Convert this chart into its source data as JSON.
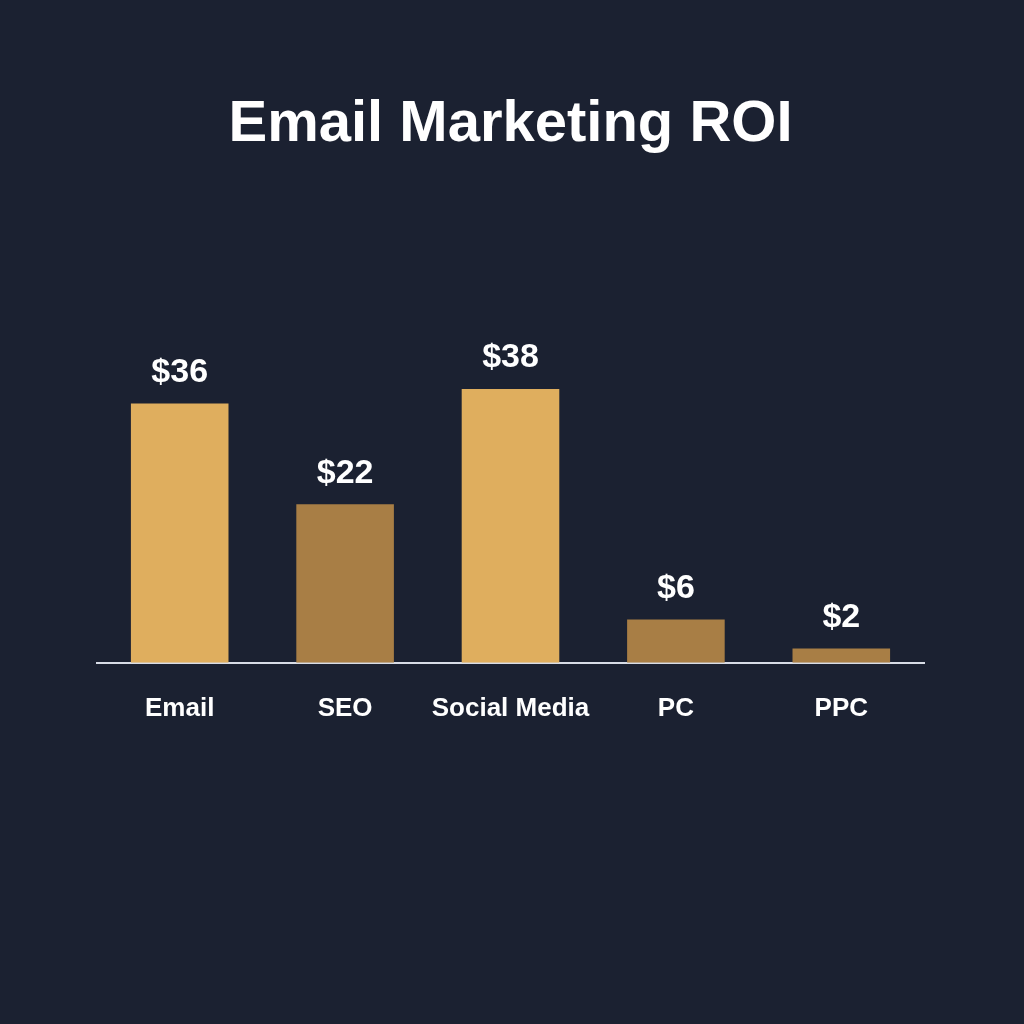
{
  "chart_data": {
    "type": "bar",
    "title": "Email Marketing ROI",
    "categories": [
      "Email",
      "SEO",
      "Social Media",
      "PC",
      "PPC"
    ],
    "values": [
      36,
      22,
      38,
      6,
      2
    ],
    "colors": [
      "#dfae5e",
      "#a87e45",
      "#dfae5e",
      "#a87e45",
      "#a87e45"
    ],
    "value_labels": [
      "$36",
      "$22",
      "$38",
      "$6",
      "$2"
    ]
  }
}
